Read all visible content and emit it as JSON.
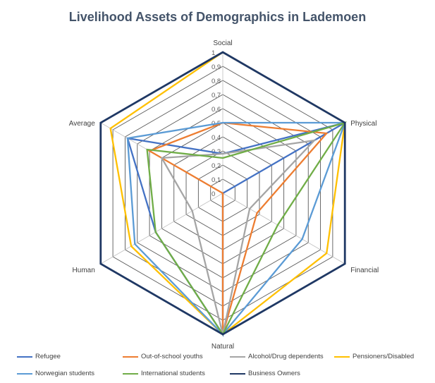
{
  "chart_data": {
    "type": "radar",
    "title": "Livelihood Assets of Demographics in Lademoen",
    "axes": [
      "Social",
      "Physical",
      "Financial",
      "Natural",
      "Human",
      "Average"
    ],
    "r_ticks": [
      "0",
      "0,1",
      "0,2",
      "0,3",
      "0,4",
      "0,5",
      "0,6",
      "0,7",
      "0,8",
      "0,9",
      "1"
    ],
    "rlim": [
      0,
      1
    ],
    "grid": true,
    "legend": "bottom",
    "series": [
      {
        "name": "Refugee",
        "color": "#4472c4",
        "values": [
          0.28,
          1.0,
          0.0,
          1.0,
          0.55,
          0.78
        ]
      },
      {
        "name": "Out-of-school youths",
        "color": "#ed7d31",
        "values": [
          0.5,
          0.85,
          0.28,
          1.0,
          0.0,
          0.6
        ]
      },
      {
        "name": "Alcohol/Drug dependents",
        "color": "#a5a5a5",
        "values": [
          0.28,
          0.75,
          0.22,
          1.0,
          0.25,
          0.5
        ]
      },
      {
        "name": "Pensioners/Disabled",
        "color": "#ffc000",
        "values": [
          1.0,
          1.0,
          0.85,
          1.0,
          0.75,
          0.92
        ]
      },
      {
        "name": "Norwegian students",
        "color": "#5b9bd5",
        "values": [
          0.5,
          1.0,
          0.65,
          1.0,
          0.72,
          0.78
        ]
      },
      {
        "name": "International students",
        "color": "#70ad47",
        "values": [
          0.25,
          1.0,
          0.45,
          1.0,
          0.55,
          0.62
        ]
      },
      {
        "name": "Business Owners",
        "color": "#1f3864",
        "values": [
          1.0,
          1.0,
          1.0,
          1.0,
          1.0,
          1.0
        ]
      }
    ]
  }
}
